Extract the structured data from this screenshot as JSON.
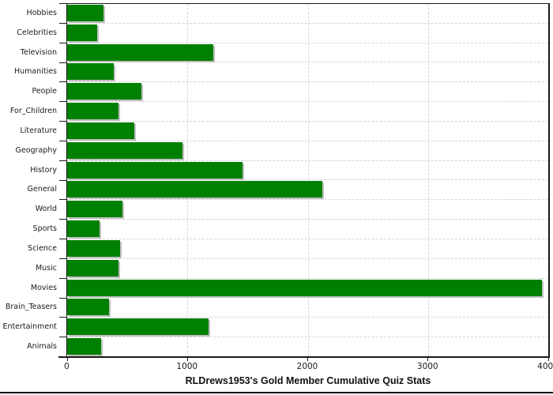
{
  "chart_data": {
    "type": "bar",
    "orientation": "horizontal",
    "title": "RLDrews1953's Gold Member Cumulative Quiz Stats",
    "categories": [
      "Hobbies",
      "Celebrities",
      "Television",
      "Humanities",
      "People",
      "For_Children",
      "Literature",
      "Geography",
      "History",
      "General",
      "World",
      "Sports",
      "Science",
      "Music",
      "Movies",
      "Brain_Teasers",
      "Entertainment",
      "Animals"
    ],
    "values": [
      305,
      250,
      1215,
      385,
      620,
      430,
      560,
      960,
      1460,
      2120,
      460,
      270,
      440,
      425,
      3945,
      350,
      1175,
      280
    ],
    "xlabel": "",
    "ylabel": "",
    "xlim": [
      0,
      4000
    ],
    "xticks": [
      0,
      1000,
      2000,
      3000,
      4000
    ],
    "xtick_labels": [
      "0",
      "1000",
      "2000",
      "3000",
      "4000"
    ],
    "grid": "dashed-both-directions",
    "legend_position": "none",
    "colors": {
      "bar_fill": "#008000",
      "bar_shadow": "#c0c0c0",
      "gridline": "#d5d5d5",
      "axis": "#1a1a1a",
      "background": "#ffffff",
      "text": "#1a1a1a"
    }
  }
}
